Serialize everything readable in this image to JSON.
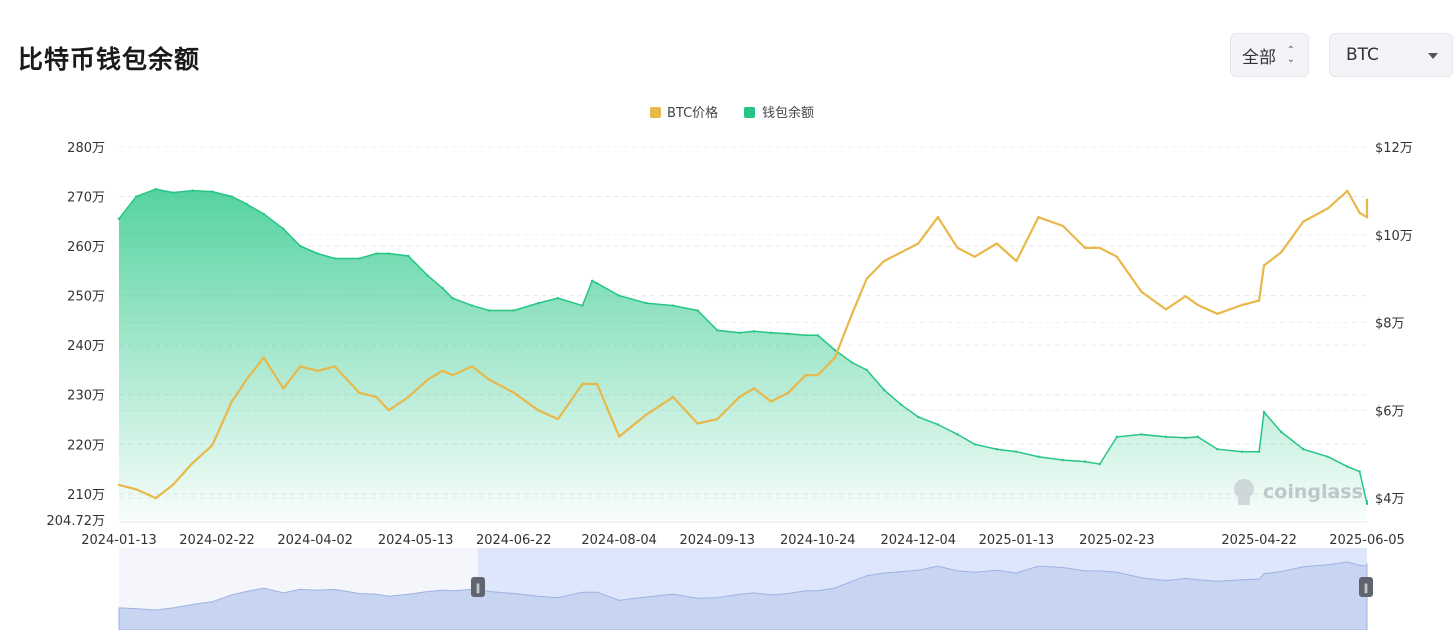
{
  "page": {
    "title": "比特币钱包余额",
    "range_select": "全部",
    "coin_select": "BTC",
    "watermark": "coinglass"
  },
  "chart_data": {
    "type": "area",
    "legend": [
      {
        "name": "BTC价格",
        "color": "#e8b84a"
      },
      {
        "name": "钱包余额",
        "color": "#25c685"
      }
    ],
    "legend_position": "top-center",
    "grid": true,
    "x_ticks": [
      "2024-01-13",
      "2024-02-22",
      "2024-04-02",
      "2024-05-13",
      "2024-06-22",
      "2024-08-04",
      "2024-09-13",
      "2024-10-24",
      "2024-12-04",
      "2025-01-13",
      "2025-02-23",
      "2025-04-22",
      "2025-06-05"
    ],
    "y_left": {
      "ticks": [
        280,
        270,
        260,
        250,
        240,
        230,
        220,
        210
      ],
      "tick_labels": [
        "280万",
        "270万",
        "260万",
        "250万",
        "240万",
        "230万",
        "220万",
        "210万"
      ],
      "min": 204.72,
      "min_label": "204.72万",
      "max": 280,
      "unit": "万"
    },
    "y_right": {
      "ticks": [
        12,
        10,
        8,
        6,
        4
      ],
      "tick_labels": [
        "$12万",
        "$10万",
        "$8万",
        "$6万",
        "$4万"
      ],
      "min": 3.5,
      "max": 12,
      "unit": "万 USD"
    },
    "series": [
      {
        "name": "钱包余额",
        "axis": "left",
        "color": "#25c685",
        "x": [
          "2024-01-13",
          "2024-01-20",
          "2024-01-28",
          "2024-02-04",
          "2024-02-12",
          "2024-02-20",
          "2024-02-28",
          "2024-03-05",
          "2024-03-12",
          "2024-03-20",
          "2024-03-27",
          "2024-04-03",
          "2024-04-10",
          "2024-04-20",
          "2024-04-27",
          "2024-05-02",
          "2024-05-10",
          "2024-05-18",
          "2024-05-24",
          "2024-05-28",
          "2024-06-05",
          "2024-06-12",
          "2024-06-22",
          "2024-07-02",
          "2024-07-10",
          "2024-07-20",
          "2024-07-24",
          "2024-07-26",
          "2024-08-04",
          "2024-08-15",
          "2024-08-26",
          "2024-09-05",
          "2024-09-13",
          "2024-09-22",
          "2024-09-28",
          "2024-10-05",
          "2024-10-12",
          "2024-10-19",
          "2024-10-24",
          "2024-10-31",
          "2024-11-07",
          "2024-11-13",
          "2024-11-20",
          "2024-11-27",
          "2024-12-04",
          "2024-12-12",
          "2024-12-20",
          "2024-12-27",
          "2025-01-05",
          "2025-01-13",
          "2025-01-22",
          "2025-02-01",
          "2025-02-10",
          "2025-02-16",
          "2025-02-23",
          "2025-03-05",
          "2025-03-15",
          "2025-03-23",
          "2025-03-28",
          "2025-04-05",
          "2025-04-15",
          "2025-04-22",
          "2025-04-24",
          "2025-05-01",
          "2025-05-10",
          "2025-05-20",
          "2025-05-28",
          "2025-06-02",
          "2025-06-05",
          "2025-06-12"
        ],
        "values": [
          265.5,
          270.0,
          271.5,
          270.8,
          271.2,
          271.0,
          270.0,
          268.5,
          266.5,
          263.5,
          260.0,
          258.5,
          257.5,
          257.5,
          258.5,
          258.5,
          258.0,
          254.0,
          251.5,
          249.5,
          248.0,
          247.0,
          247.0,
          248.5,
          249.5,
          248.0,
          253.0,
          252.5,
          250.0,
          248.5,
          248.0,
          247.0,
          243.0,
          242.5,
          242.8,
          242.5,
          242.3,
          242.0,
          242.0,
          239.0,
          236.5,
          235.0,
          231.0,
          228.0,
          225.5,
          224.0,
          222.0,
          220.0,
          219.0,
          218.5,
          217.5,
          216.8,
          216.5,
          216.0,
          221.5,
          222.0,
          221.5,
          221.3,
          221.5,
          219.0,
          218.5,
          218.5,
          226.5,
          222.5,
          219.0,
          217.5,
          215.5,
          214.5,
          208.0,
          208.5
        ]
      },
      {
        "name": "BTC价格",
        "axis": "right",
        "color": "#e8b84a",
        "x": [
          "2024-01-13",
          "2024-01-20",
          "2024-01-28",
          "2024-02-04",
          "2024-02-12",
          "2024-02-20",
          "2024-02-28",
          "2024-03-05",
          "2024-03-12",
          "2024-03-20",
          "2024-03-27",
          "2024-04-03",
          "2024-04-10",
          "2024-04-20",
          "2024-04-27",
          "2024-05-02",
          "2024-05-10",
          "2024-05-18",
          "2024-05-24",
          "2024-05-28",
          "2024-06-05",
          "2024-06-12",
          "2024-06-22",
          "2024-07-02",
          "2024-07-10",
          "2024-07-20",
          "2024-07-24",
          "2024-07-26",
          "2024-08-04",
          "2024-08-15",
          "2024-08-26",
          "2024-09-05",
          "2024-09-13",
          "2024-09-22",
          "2024-09-28",
          "2024-10-05",
          "2024-10-12",
          "2024-10-19",
          "2024-10-24",
          "2024-10-31",
          "2024-11-07",
          "2024-11-13",
          "2024-11-20",
          "2024-11-27",
          "2024-12-04",
          "2024-12-12",
          "2024-12-20",
          "2024-12-27",
          "2025-01-05",
          "2025-01-13",
          "2025-01-22",
          "2025-02-01",
          "2025-02-10",
          "2025-02-16",
          "2025-02-23",
          "2025-03-05",
          "2025-03-15",
          "2025-03-23",
          "2025-03-28",
          "2025-04-05",
          "2025-04-15",
          "2025-04-22",
          "2025-04-24",
          "2025-05-01",
          "2025-05-10",
          "2025-05-20",
          "2025-05-28",
          "2025-06-02",
          "2025-06-05",
          "2025-06-12"
        ],
        "values": [
          4.3,
          4.2,
          4.0,
          4.3,
          4.8,
          5.2,
          6.2,
          6.7,
          7.2,
          6.5,
          7.0,
          6.9,
          7.0,
          6.4,
          6.3,
          6.0,
          6.3,
          6.7,
          6.9,
          6.8,
          7.0,
          6.7,
          6.4,
          6.0,
          5.8,
          6.6,
          6.6,
          6.6,
          5.4,
          5.9,
          6.3,
          5.7,
          5.8,
          6.3,
          6.5,
          6.2,
          6.4,
          6.8,
          6.8,
          7.2,
          8.2,
          9.0,
          9.4,
          9.6,
          9.8,
          10.4,
          9.7,
          9.5,
          9.8,
          9.4,
          10.4,
          10.2,
          9.7,
          9.7,
          9.5,
          8.7,
          8.3,
          8.6,
          8.4,
          8.2,
          8.4,
          8.5,
          9.3,
          9.6,
          10.3,
          10.6,
          11.0,
          10.5,
          10.4,
          10.8
        ]
      }
    ]
  }
}
